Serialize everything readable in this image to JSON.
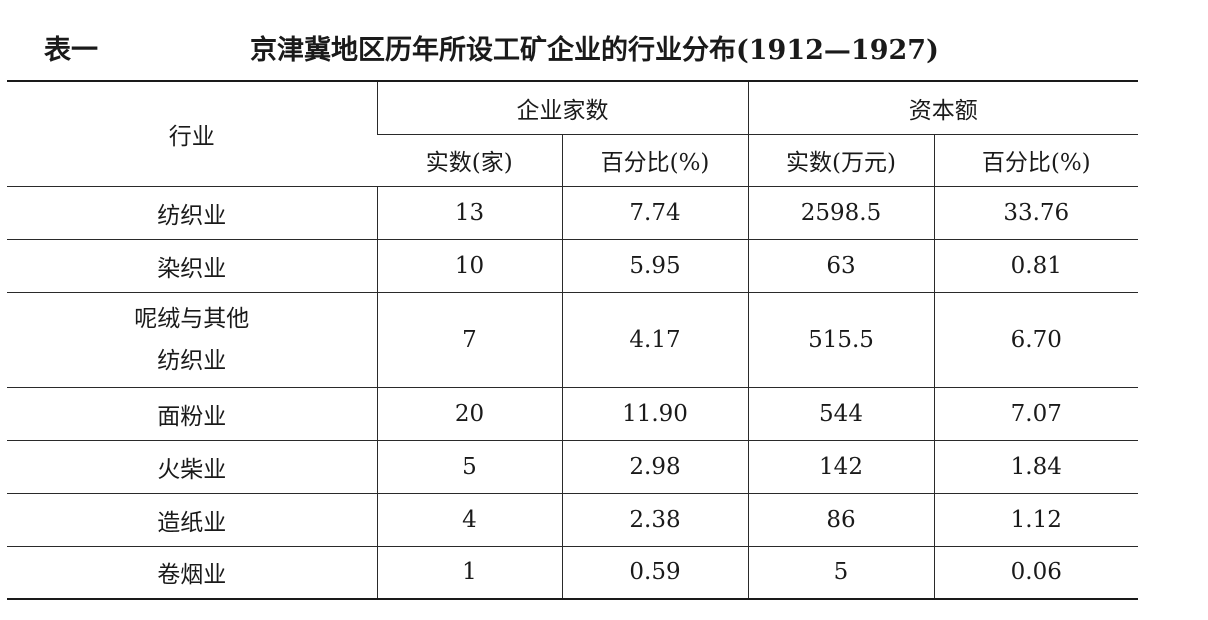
{
  "caption": {
    "label": "表一",
    "title": "京津冀地区历年所设工矿企业的行业分布(1912—1927)"
  },
  "header": {
    "industry": "行业",
    "enterprise_group": "企业家数",
    "capital_group": "资本额",
    "count_actual": "实数(家)",
    "count_percent": "百分比(%)",
    "capital_actual": "实数(万元)",
    "capital_percent": "百分比(%)"
  },
  "rows": [
    {
      "industry": "纺织业",
      "count": "13",
      "count_pct": "7.74",
      "capital": "2598.5",
      "capital_pct": "33.76"
    },
    {
      "industry": "染织业",
      "count": "10",
      "count_pct": "5.95",
      "capital": "63",
      "capital_pct": "0.81"
    },
    {
      "industry_line1": "呢绒与其他",
      "industry_line2": "纺织业",
      "count": "7",
      "count_pct": "4.17",
      "capital": "515.5",
      "capital_pct": "6.70"
    },
    {
      "industry": "面粉业",
      "count": "20",
      "count_pct": "11.90",
      "capital": "544",
      "capital_pct": "7.07"
    },
    {
      "industry": "火柴业",
      "count": "5",
      "count_pct": "2.98",
      "capital": "142",
      "capital_pct": "1.84"
    },
    {
      "industry": "造纸业",
      "count": "4",
      "count_pct": "2.38",
      "capital": "86",
      "capital_pct": "1.12"
    },
    {
      "industry": "卷烟业",
      "count": "1",
      "count_pct": "0.59",
      "capital": "5",
      "capital_pct": "0.06"
    }
  ]
}
